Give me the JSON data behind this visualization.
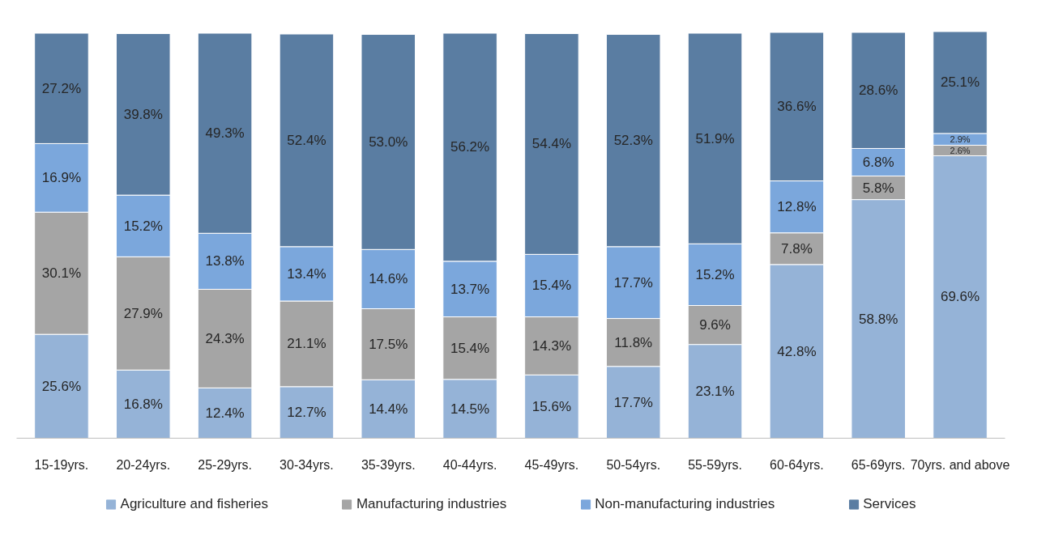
{
  "chart_data": {
    "type": "bar",
    "stacked": true,
    "legend": "bottom",
    "grid": false,
    "categories": [
      "15-19yrs.",
      "20-24yrs.",
      "25-29yrs.",
      "30-34yrs.",
      "35-39yrs.",
      "40-44yrs.",
      "45-49yrs.",
      "50-54yrs.",
      "55-59yrs.",
      "60-64yrs.",
      "65-69yrs.",
      "70yrs. and above"
    ],
    "series": [
      {
        "name": "Agriculture and fisheries",
        "color": "#95b3d7",
        "values": [
          25.6,
          16.8,
          12.4,
          12.7,
          14.4,
          14.5,
          15.6,
          17.7,
          23.1,
          42.8,
          58.8,
          69.6
        ],
        "value_labels": [
          "25.6%",
          "16.8%",
          "12.4%",
          "12.7%",
          "14.4%",
          "14.5%",
          "15.6%",
          "17.7%",
          "23.1%",
          "42.8%",
          "58.8%",
          "69.6%"
        ]
      },
      {
        "name": "Manufacturing industries",
        "color": "#a5a5a5",
        "values": [
          30.1,
          27.9,
          24.3,
          21.1,
          17.5,
          15.4,
          14.3,
          11.8,
          9.6,
          7.8,
          5.8,
          2.6
        ],
        "value_labels": [
          "30.1%",
          "27.9%",
          "24.3%",
          "21.1%",
          "17.5%",
          "15.4%",
          "14.3%",
          "11.8%",
          "9.6%",
          "7.8%",
          "5.8%",
          "2.6%"
        ]
      },
      {
        "name": "Non-manufacturing industries",
        "color": "#7ba7dc",
        "values": [
          16.9,
          15.2,
          13.8,
          13.4,
          14.6,
          13.7,
          15.4,
          17.7,
          15.2,
          12.8,
          6.8,
          2.9
        ],
        "value_labels": [
          "16.9%",
          "15.2%",
          "13.8%",
          "13.4%",
          "14.6%",
          "13.7%",
          "15.4%",
          "17.7%",
          "15.2%",
          "12.8%",
          "6.8%",
          "2.9%"
        ]
      },
      {
        "name": "Services",
        "color": "#5a7da2",
        "values": [
          27.2,
          39.8,
          49.3,
          52.4,
          53.0,
          56.2,
          54.4,
          52.3,
          51.9,
          36.6,
          28.6,
          25.1
        ],
        "value_labels": [
          "27.2%",
          "39.8%",
          "49.3%",
          "52.4%",
          "53.0%",
          "56.2%",
          "54.4%",
          "52.3%",
          "51.9%",
          "36.6%",
          "28.6%",
          "25.1%"
        ]
      }
    ]
  }
}
